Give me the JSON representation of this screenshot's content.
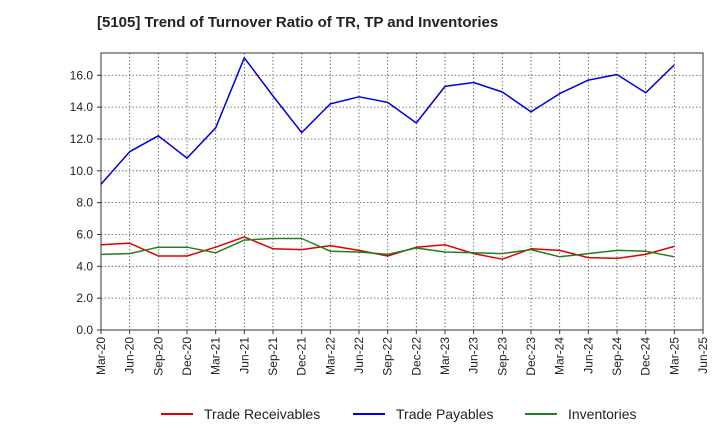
{
  "chart_data": {
    "type": "line",
    "title": "[5105]  Trend of Turnover Ratio of TR, TP and Inventories",
    "xlabel": "",
    "ylabel": "",
    "ylim": [
      0,
      17.4
    ],
    "yticks": [
      "0.0",
      "2.0",
      "4.0",
      "6.0",
      "8.0",
      "10.0",
      "12.0",
      "14.0",
      "16.0"
    ],
    "x_tick_labels": [
      "Mar-20",
      "Jun-20",
      "Sep-20",
      "Dec-20",
      "Mar-21",
      "Jun-21",
      "Sep-21",
      "Dec-21",
      "Mar-22",
      "Jun-22",
      "Sep-22",
      "Dec-22",
      "Mar-23",
      "Jun-23",
      "Sep-23",
      "Dec-23",
      "Mar-24",
      "Jun-24",
      "Sep-24",
      "Dec-24",
      "Mar-25",
      "Jun-25"
    ],
    "x": [
      "Mar-20",
      "Jun-20",
      "Sep-20",
      "Dec-20",
      "Mar-21",
      "Jun-21",
      "Sep-21",
      "Dec-21",
      "Mar-22",
      "Jun-22",
      "Sep-22",
      "Dec-22",
      "Mar-23",
      "Jun-23",
      "Sep-23",
      "Dec-23",
      "Mar-24",
      "Jun-24",
      "Sep-24",
      "Dec-24",
      "Mar-25"
    ],
    "grid": true,
    "legend_position": "bottom",
    "series": [
      {
        "name": "Trade Receivables",
        "color": "#e00000",
        "values": [
          5.35,
          5.45,
          4.65,
          4.65,
          5.2,
          5.85,
          5.1,
          5.05,
          5.3,
          5.0,
          4.65,
          5.2,
          5.35,
          4.8,
          4.45,
          5.1,
          5.0,
          4.55,
          4.5,
          4.75,
          5.25
        ]
      },
      {
        "name": "Trade Payables",
        "color": "#0000e0",
        "values": [
          9.15,
          11.2,
          12.2,
          10.8,
          12.7,
          17.1,
          14.7,
          12.4,
          14.2,
          14.65,
          14.3,
          13.0,
          15.3,
          15.55,
          14.95,
          13.7,
          14.85,
          15.7,
          16.05,
          14.9,
          16.65
        ]
      },
      {
        "name": "Inventories",
        "color": "#208020",
        "values": [
          4.75,
          4.8,
          5.2,
          5.2,
          4.85,
          5.65,
          5.75,
          5.75,
          4.95,
          4.9,
          4.75,
          5.15,
          4.9,
          4.85,
          4.8,
          5.05,
          4.6,
          4.8,
          5.0,
          4.95,
          4.6
        ]
      }
    ]
  }
}
